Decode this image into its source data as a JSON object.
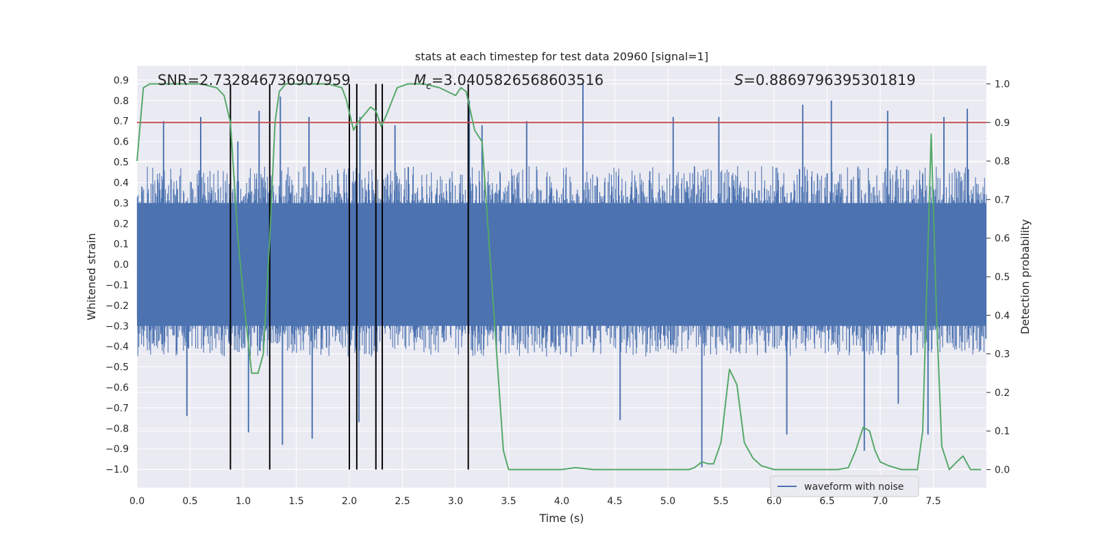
{
  "chart_data": {
    "type": "line",
    "title": "stats at each timestep for test data 20960 [signal=1]",
    "xlabel": "Time (s)",
    "ylabel": "Whitened strain",
    "y2label": "Detection probability",
    "xlim": [
      0.0,
      8.0
    ],
    "ylim": [
      -1.09,
      0.97
    ],
    "y2lim": [
      -0.047,
      1.047
    ],
    "x_ticks": [
      "0.0",
      "0.5",
      "1.0",
      "1.5",
      "2.0",
      "2.5",
      "3.0",
      "3.5",
      "4.0",
      "4.5",
      "5.0",
      "5.5",
      "6.0",
      "6.5",
      "7.0",
      "7.5"
    ],
    "y_ticks": [
      "0.9",
      "0.8",
      "0.7",
      "0.6",
      "0.5",
      "0.4",
      "0.3",
      "0.2",
      "0.1",
      "0.0",
      "−0.1",
      "−0.2",
      "−0.3",
      "−0.4",
      "−0.5",
      "−0.6",
      "−0.7",
      "−0.8",
      "−0.9",
      "−1.0"
    ],
    "y2_ticks": [
      "1.0",
      "0.9",
      "0.8",
      "0.7",
      "0.6",
      "0.5",
      "0.4",
      "0.3",
      "0.2",
      "0.1",
      "0.0"
    ],
    "grid": true,
    "legend": {
      "placement": "lower-right",
      "entries": [
        "waveform with noise"
      ]
    },
    "annotations": {
      "snr": "SNR=2.732846736907959",
      "mc_symbol": "M",
      "mc_sub": "c",
      "mc_value": "=3.0405826568603516",
      "s_symbol": "S",
      "s_value": "=0.8869796395301819"
    },
    "threshold": {
      "y2": 0.9,
      "color": "#c44e52"
    },
    "vertical_markers": [
      0.88,
      1.25,
      2.0,
      2.07,
      2.25,
      2.31,
      3.12
    ],
    "series": [
      {
        "name": "waveform with noise",
        "axis": "left",
        "color": "#4c72b0",
        "typical_range": [
          -0.45,
          0.48
        ],
        "spikes": [
          [
            0.25,
            0.7
          ],
          [
            0.6,
            0.72
          ],
          [
            0.95,
            0.6
          ],
          [
            1.15,
            0.75
          ],
          [
            1.35,
            0.82
          ],
          [
            1.62,
            0.72
          ],
          [
            2.1,
            0.72
          ],
          [
            2.43,
            0.68
          ],
          [
            3.13,
            0.8
          ],
          [
            3.25,
            0.68
          ],
          [
            3.67,
            0.7
          ],
          [
            4.2,
            0.88
          ],
          [
            5.05,
            0.72
          ],
          [
            5.48,
            0.72
          ],
          [
            6.27,
            0.78
          ],
          [
            6.54,
            0.8
          ],
          [
            7.07,
            0.75
          ],
          [
            7.6,
            0.72
          ],
          [
            7.82,
            0.76
          ],
          [
            0.47,
            -0.74
          ],
          [
            1.05,
            -0.82
          ],
          [
            1.37,
            -0.88
          ],
          [
            1.65,
            -0.85
          ],
          [
            2.09,
            -0.77
          ],
          [
            4.55,
            -0.76
          ],
          [
            5.32,
            -0.99
          ],
          [
            6.12,
            -0.83
          ],
          [
            6.85,
            -0.91
          ],
          [
            7.17,
            -0.68
          ],
          [
            7.45,
            -0.83
          ]
        ]
      },
      {
        "name": "",
        "axis": "right",
        "color": "#55a868",
        "x": [
          0.0,
          0.06,
          0.12,
          0.3,
          0.6,
          0.75,
          0.82,
          0.88,
          0.95,
          1.02,
          1.08,
          1.14,
          1.19,
          1.25,
          1.3,
          1.34,
          1.4,
          1.6,
          1.8,
          1.93,
          1.97,
          2.04,
          2.08,
          2.14,
          2.2,
          2.25,
          2.3,
          2.35,
          2.45,
          2.55,
          2.7,
          2.85,
          3.0,
          3.05,
          3.1,
          3.18,
          3.25,
          3.35,
          3.45,
          3.5,
          3.6,
          3.8,
          4.0,
          4.13,
          4.3,
          4.6,
          5.0,
          5.1,
          5.2,
          5.25,
          5.32,
          5.38,
          5.43,
          5.5,
          5.58,
          5.65,
          5.72,
          5.8,
          5.88,
          6.0,
          6.3,
          6.6,
          6.7,
          6.77,
          6.84,
          6.9,
          6.95,
          7.0,
          7.08,
          7.2,
          7.35,
          7.4,
          7.48,
          7.53,
          7.58,
          7.65,
          7.72,
          7.78,
          7.85,
          7.95
        ],
        "values": [
          0.8,
          0.99,
          1.0,
          1.0,
          1.0,
          0.99,
          0.97,
          0.9,
          0.6,
          0.4,
          0.25,
          0.25,
          0.3,
          0.6,
          0.9,
          0.98,
          1.0,
          1.0,
          1.0,
          0.99,
          0.96,
          0.88,
          0.9,
          0.92,
          0.94,
          0.93,
          0.89,
          0.92,
          0.99,
          1.0,
          1.0,
          0.99,
          0.97,
          0.99,
          0.98,
          0.88,
          0.85,
          0.45,
          0.05,
          0.0,
          0.0,
          0.0,
          0.0,
          0.005,
          0.0,
          0.0,
          0.0,
          0.0,
          0.0,
          0.005,
          0.02,
          0.015,
          0.015,
          0.07,
          0.26,
          0.22,
          0.07,
          0.03,
          0.01,
          0.0,
          0.0,
          0.0,
          0.005,
          0.05,
          0.11,
          0.1,
          0.05,
          0.02,
          0.01,
          0.0,
          0.0,
          0.1,
          0.87,
          0.4,
          0.06,
          0.0,
          0.02,
          0.035,
          0.0,
          0.0
        ]
      }
    ]
  }
}
